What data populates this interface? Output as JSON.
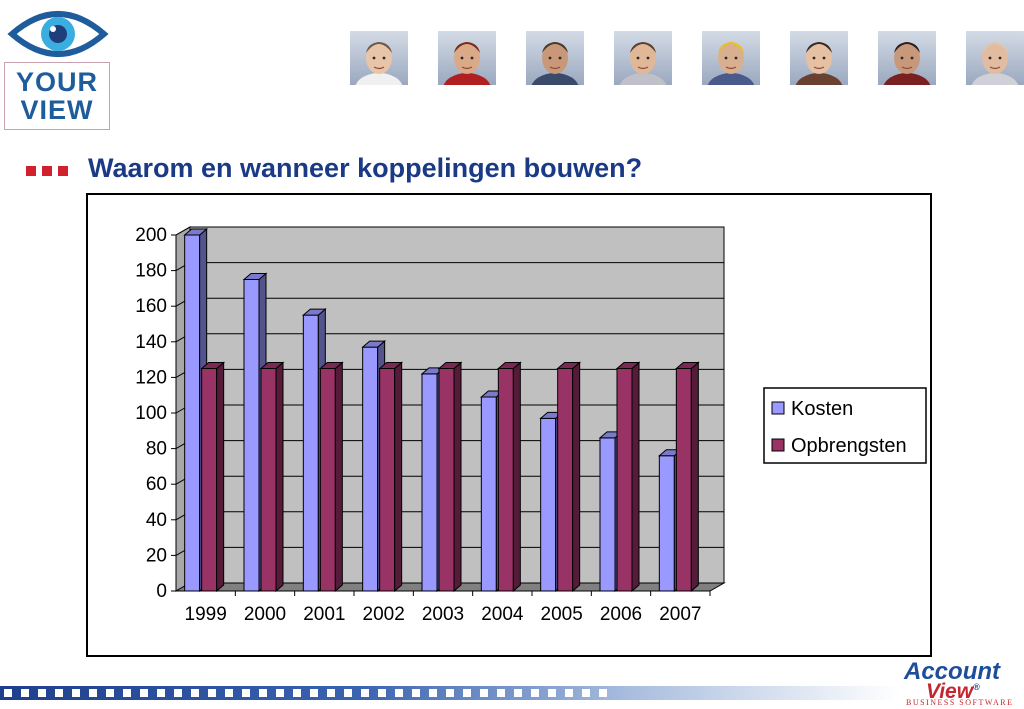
{
  "logo": {
    "line1": "YOUR",
    "line2": "VIEW",
    "colors": {
      "text": "#1e5c9c",
      "eye": "#3aaee0",
      "border": "#c9a0b0"
    }
  },
  "header": {
    "photo_count": 8,
    "photo_icon": "person-photo-icon"
  },
  "slide": {
    "title": "Waarom en wanneer koppelingen bouwen?",
    "title_color": "#1a3a86",
    "bullet_color": "#d2202f"
  },
  "chart_data": {
    "type": "bar",
    "three_d": true,
    "categories": [
      "1999",
      "2000",
      "2001",
      "2002",
      "2003",
      "2004",
      "2005",
      "2006",
      "2007"
    ],
    "series": [
      {
        "name": "Kosten",
        "color": "#9999ff",
        "values": [
          200,
          175,
          155,
          137,
          122,
          109,
          97,
          86,
          76
        ]
      },
      {
        "name": "Opbrengsten",
        "color": "#993366",
        "values": [
          125,
          125,
          125,
          125,
          125,
          125,
          125,
          125,
          125
        ]
      }
    ],
    "title": "",
    "xlabel": "",
    "ylabel": "",
    "ylim": [
      0,
      200
    ],
    "yticks": [
      0,
      20,
      40,
      60,
      80,
      100,
      120,
      140,
      160,
      180,
      200
    ],
    "grid": true,
    "wall_color": "#c0c0c0",
    "legend_position": "right"
  },
  "footer": {
    "brand_line1": "Account",
    "brand_line2": "View",
    "brand_mark": "®",
    "brand_tagline": "BUSINESS SOFTWARE",
    "brand_colors": {
      "blue": "#1e4d9a",
      "red": "#c4252f"
    }
  }
}
